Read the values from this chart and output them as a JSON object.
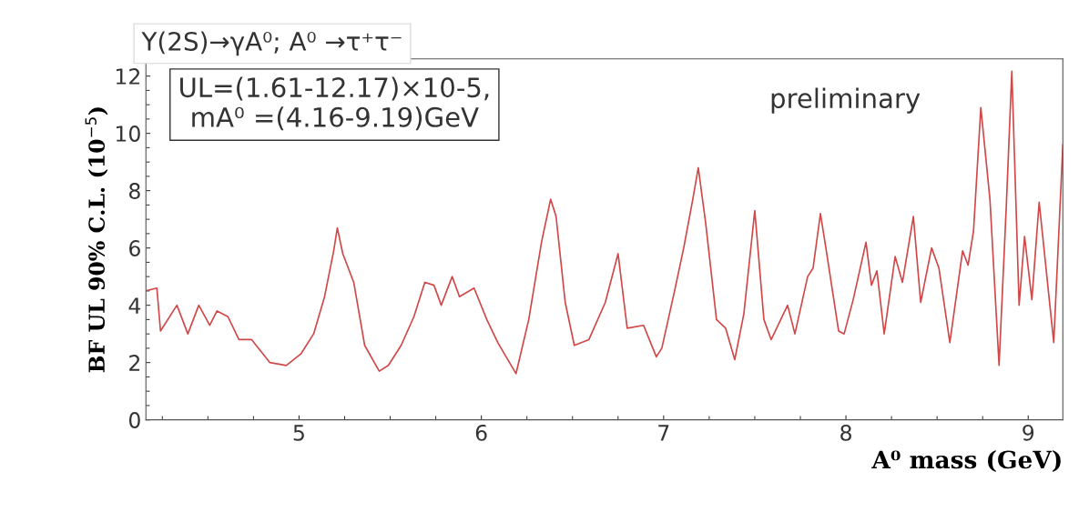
{
  "chart_data": {
    "type": "line",
    "title": "Υ(2S)→γA⁰; A⁰ →τ⁺τ⁻",
    "xlabel": "A⁰ mass (GeV)",
    "ylabel": "BF UL 90% C.L. (10$^{−5}$)",
    "annotations": [
      "UL=(1.61-12.17)×10-5,\nmA⁰ =(4.16-9.19)GeV",
      "preliminary"
    ],
    "xlim": [
      4.16,
      9.19
    ],
    "ylim": [
      0,
      12.6
    ],
    "xticks": [
      5,
      6,
      7,
      8,
      9
    ],
    "yticks": [
      0,
      2,
      4,
      6,
      8,
      10,
      12
    ],
    "grid": false,
    "legend": false,
    "marker": "none",
    "line_style": "solid",
    "series": [
      {
        "color": "#d04848",
        "x": [
          4.16,
          4.22,
          4.24,
          4.33,
          4.39,
          4.45,
          4.51,
          4.55,
          4.61,
          4.67,
          4.74,
          4.84,
          4.93,
          5.01,
          5.08,
          5.14,
          5.19,
          5.21,
          5.24,
          5.3,
          5.36,
          5.44,
          5.49,
          5.56,
          5.63,
          5.69,
          5.74,
          5.78,
          5.84,
          5.88,
          5.96,
          6.03,
          6.09,
          6.19,
          6.26,
          6.33,
          6.38,
          6.41,
          6.46,
          6.51,
          6.59,
          6.68,
          6.75,
          6.8,
          6.89,
          6.96,
          6.99,
          7.06,
          7.11,
          7.16,
          7.19,
          7.23,
          7.29,
          7.34,
          7.39,
          7.44,
          7.5,
          7.55,
          7.59,
          7.68,
          7.72,
          7.79,
          7.82,
          7.86,
          7.89,
          7.96,
          7.99,
          8.04,
          8.11,
          8.14,
          8.17,
          8.21,
          8.27,
          8.31,
          8.37,
          8.41,
          8.47,
          8.51,
          8.57,
          8.64,
          8.67,
          8.7,
          8.74,
          8.79,
          8.84,
          8.88,
          8.91,
          8.95,
          8.98,
          9.02,
          9.06,
          9.14,
          9.19
        ],
        "values": [
          4.5,
          4.6,
          3.1,
          4.0,
          3.0,
          4.0,
          3.3,
          3.8,
          3.6,
          2.8,
          2.8,
          2.0,
          1.9,
          2.3,
          3.0,
          4.3,
          5.9,
          6.7,
          5.8,
          4.8,
          2.6,
          1.7,
          1.9,
          2.6,
          3.6,
          4.8,
          4.7,
          4.0,
          5.0,
          4.3,
          4.6,
          3.5,
          2.7,
          1.61,
          3.5,
          6.2,
          7.7,
          7.1,
          4.1,
          2.6,
          2.8,
          4.1,
          5.8,
          3.2,
          3.3,
          2.2,
          2.5,
          4.5,
          6.0,
          7.7,
          8.8,
          6.9,
          3.5,
          3.2,
          2.1,
          3.7,
          7.3,
          3.5,
          2.8,
          4.0,
          3.0,
          5.0,
          5.3,
          7.2,
          6.0,
          3.1,
          3.0,
          4.2,
          6.2,
          4.7,
          5.2,
          3.0,
          5.7,
          4.8,
          7.1,
          4.1,
          6.0,
          5.3,
          2.7,
          5.9,
          5.4,
          6.6,
          10.9,
          7.7,
          1.9,
          7.5,
          12.17,
          4.0,
          6.4,
          4.2,
          7.6,
          2.7,
          9.6
        ]
      }
    ]
  }
}
